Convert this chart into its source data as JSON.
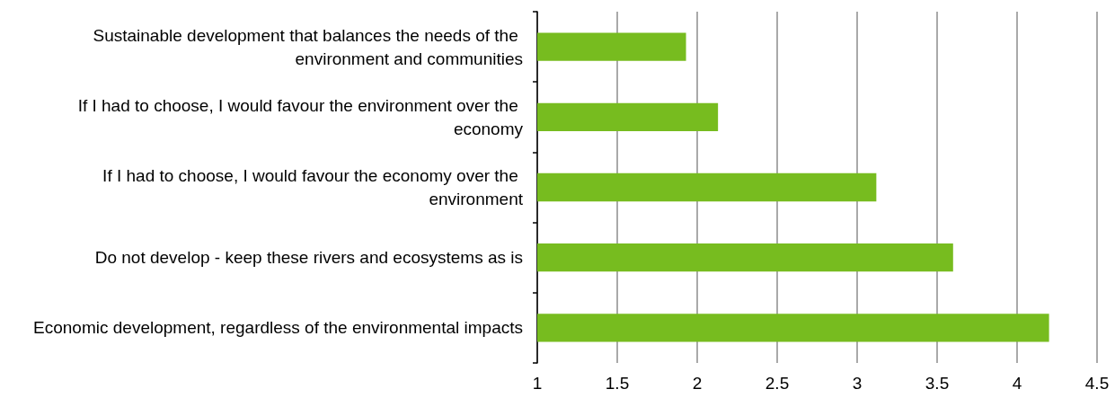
{
  "chart_data": {
    "type": "bar",
    "orientation": "horizontal",
    "categories": [
      "Sustainable development that balances the needs of the environment and communities",
      "If I had to choose, I would favour the environment over the economy",
      "If I had to choose, I would favour the economy over the environment",
      "Do not develop - keep these rivers and ecosystems as is",
      "Economic development, regardless of the environmental impacts"
    ],
    "values": [
      1.93,
      2.13,
      3.12,
      3.6,
      4.2
    ],
    "color": "#77bc1f",
    "xlim": [
      1,
      4.5
    ],
    "xticks": [
      1,
      1.5,
      2,
      2.5,
      3,
      3.5,
      4,
      4.5
    ],
    "grid": "x"
  }
}
